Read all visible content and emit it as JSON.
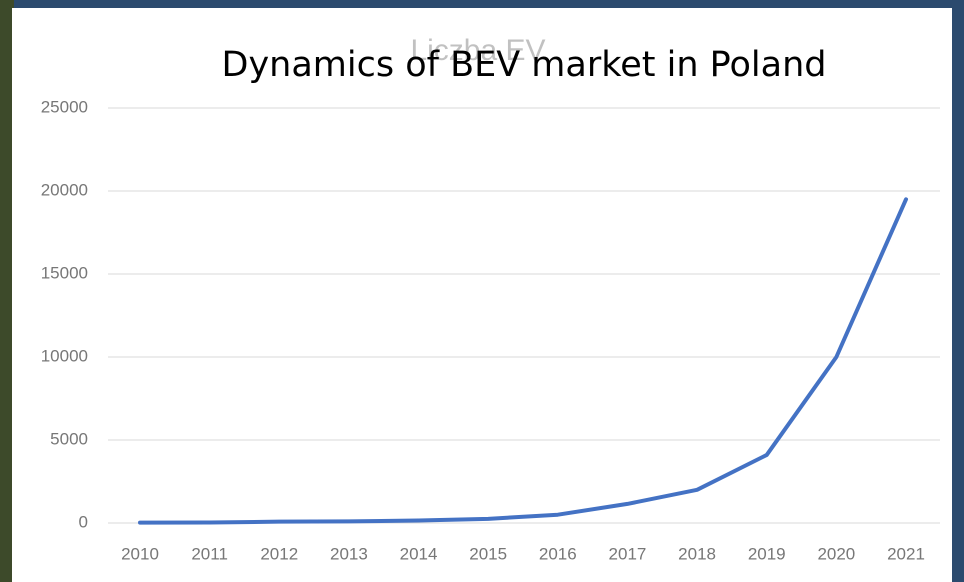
{
  "chart_data": {
    "type": "line",
    "title": "Dynamics of BEV market in Poland",
    "subtitle": "Liczba EV",
    "categories": [
      "2010",
      "2011",
      "2012",
      "2013",
      "2014",
      "2015",
      "2016",
      "2017",
      "2018",
      "2019",
      "2020",
      "2021"
    ],
    "series": [
      {
        "name": "Liczba EV",
        "color": "#4472c4",
        "values": [
          20,
          30,
          80,
          100,
          150,
          250,
          500,
          1150,
          2000,
          4100,
          10000,
          19500
        ]
      }
    ],
    "ylim": [
      0,
      25000
    ],
    "yticks": [
      0,
      5000,
      10000,
      15000,
      20000,
      25000
    ],
    "grid": true
  }
}
